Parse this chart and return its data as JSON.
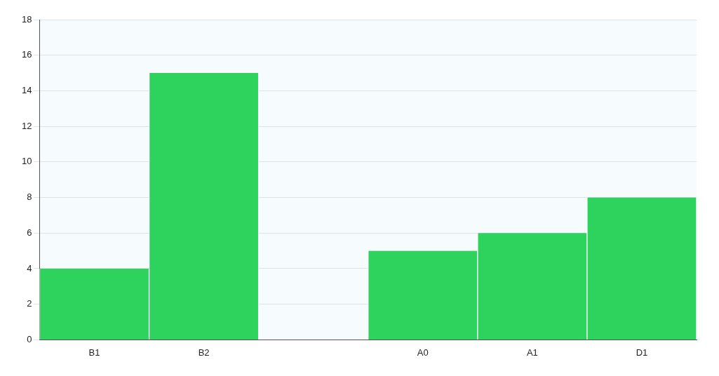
{
  "chart_data": {
    "type": "bar",
    "categories": [
      "B1",
      "B2",
      null,
      "A0",
      "A1",
      "D1"
    ],
    "values": [
      4,
      15,
      null,
      5,
      6,
      8
    ],
    "color": "#2ed35d",
    "ylim": [
      0,
      18
    ],
    "yticks": [
      0,
      2,
      4,
      6,
      8,
      10,
      12,
      14,
      16,
      18
    ],
    "grid": "y"
  }
}
